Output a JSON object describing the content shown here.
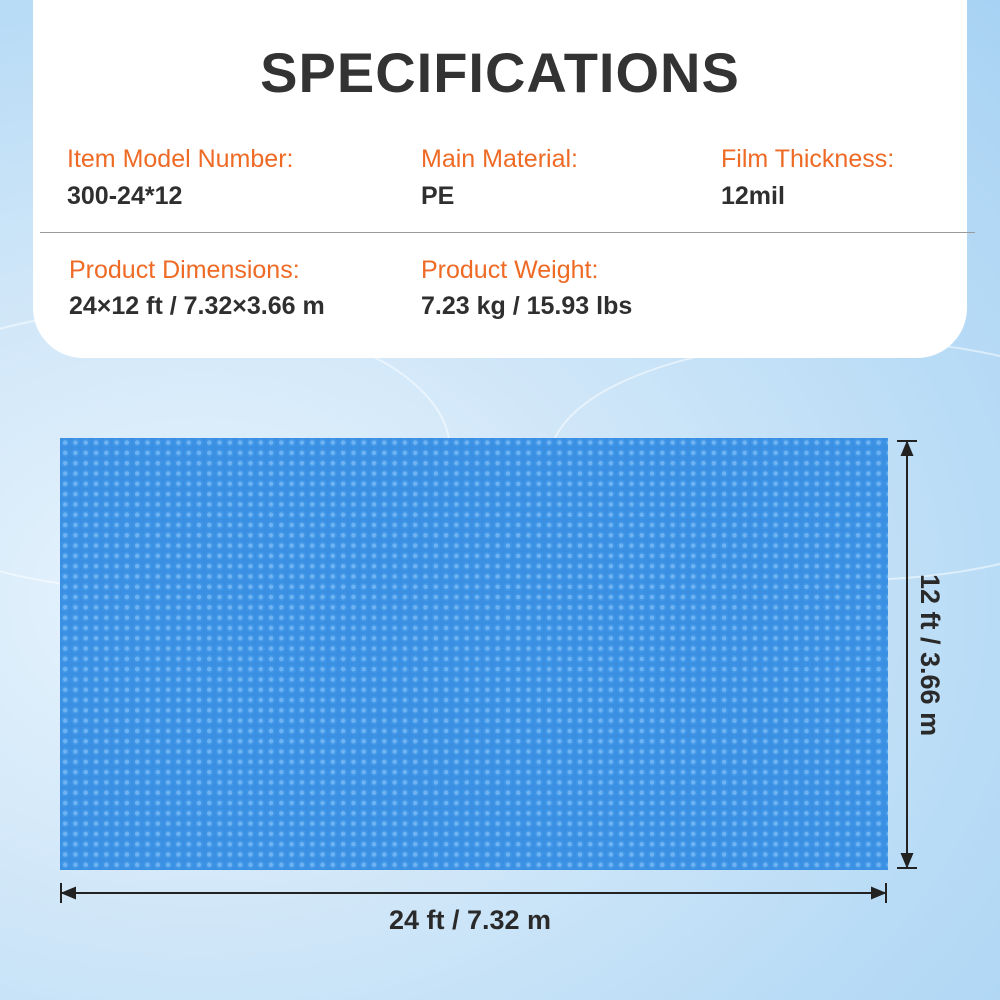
{
  "title": "SPECIFICATIONS",
  "specs": [
    {
      "label": "Item Model Number:",
      "value": "300-24*12"
    },
    {
      "label": "Main Material:",
      "value": "PE"
    },
    {
      "label": "Film Thickness:",
      "value": "12mil"
    },
    {
      "label": "Product Dimensions:",
      "value": "24×12 ft / 7.32×3.66 m"
    },
    {
      "label": "Product Weight:",
      "value": "7.23 kg / 15.93 lbs"
    }
  ],
  "dimensions": {
    "width": "24 ft / 7.32 m",
    "height": "12 ft / 3.66 m"
  },
  "colors": {
    "label": "#ee6a25",
    "cover": "#3b8fe2",
    "text": "#2f2f2f"
  }
}
